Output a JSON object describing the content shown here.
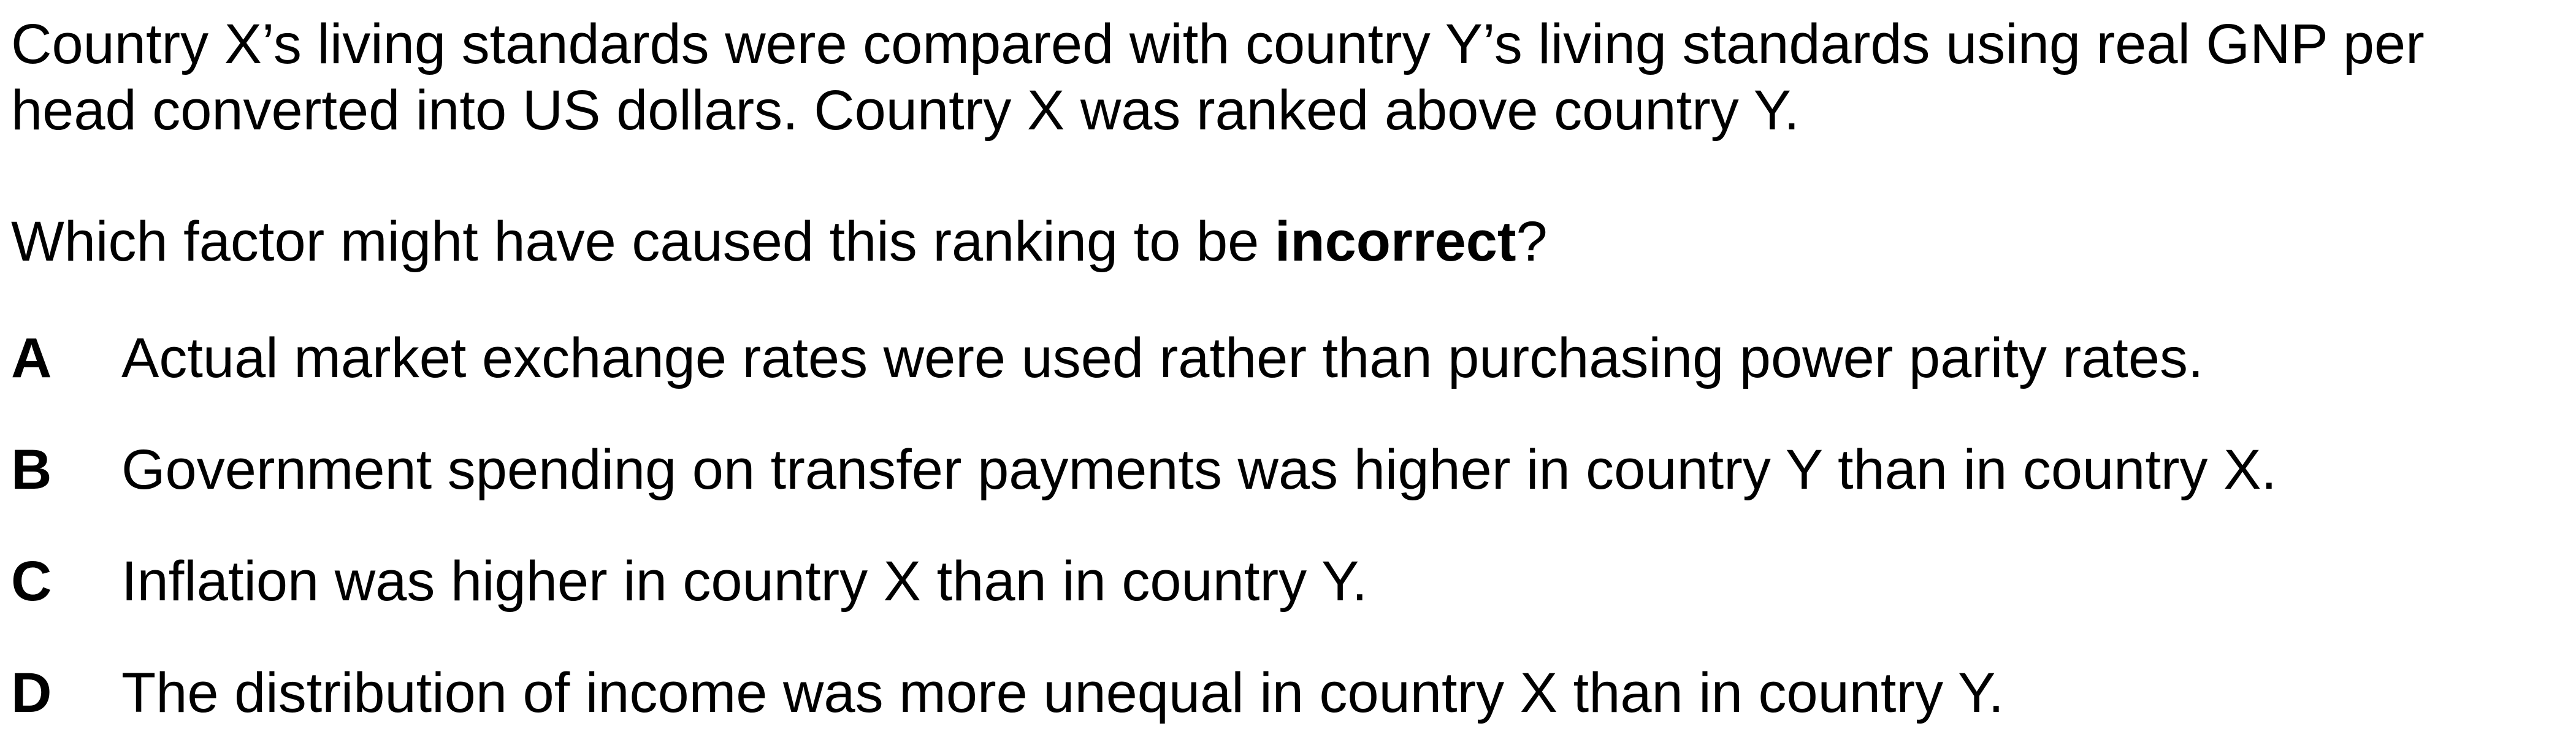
{
  "question": {
    "stem": "Country X’s living standards were compared with country Y’s living standards using real GNP per head converted into US dollars. Country X was ranked above country Y.",
    "prompt_before": "Which factor might have caused this ranking to be ",
    "prompt_emphasis": "incorrect",
    "prompt_after": "?"
  },
  "options": [
    {
      "letter": "A",
      "text": "Actual market exchange rates were used rather than purchasing power parity rates."
    },
    {
      "letter": "B",
      "text": "Government spending on transfer payments was higher in country Y than in country X."
    },
    {
      "letter": "C",
      "text": "Inflation was higher in country X than in country Y."
    },
    {
      "letter": "D",
      "text": "The distribution of income was more unequal in country X than in country Y."
    }
  ]
}
